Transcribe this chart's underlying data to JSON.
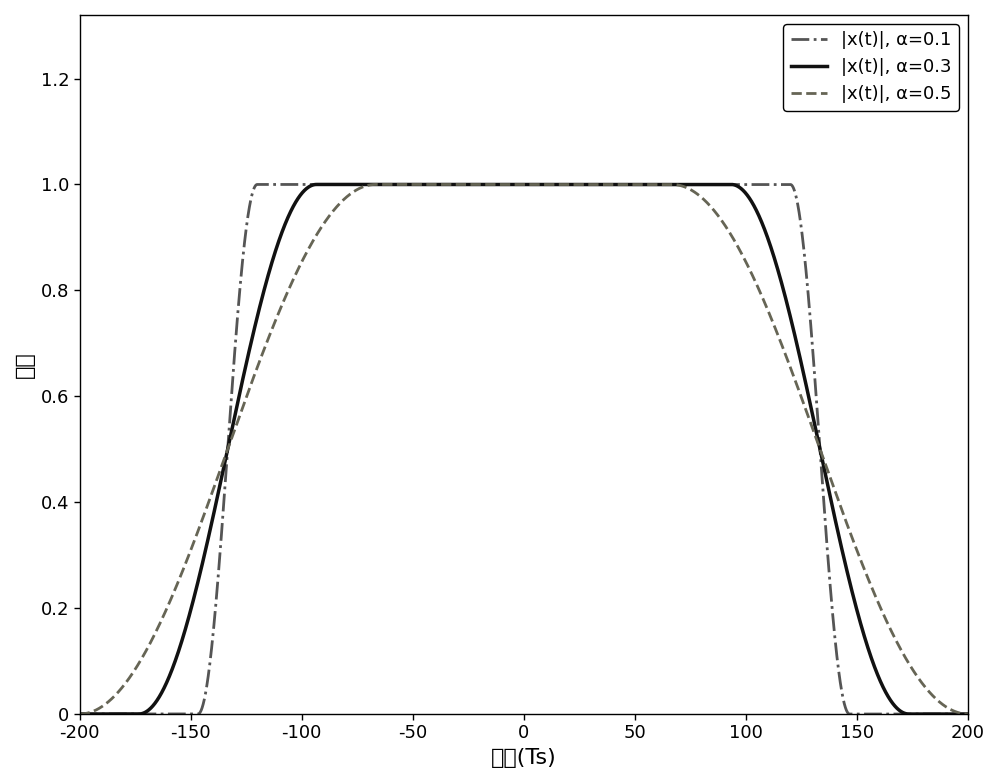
{
  "title": "",
  "xlabel": "时间(Ts)",
  "ylabel": "幅度",
  "xlim": [
    -200,
    200
  ],
  "ylim": [
    0,
    1.32
  ],
  "xticks": [
    -200,
    -150,
    -100,
    -50,
    0,
    50,
    100,
    150,
    200
  ],
  "yticks": [
    0,
    0.2,
    0.4,
    0.6,
    0.8,
    1.0,
    1.2
  ],
  "alphas": [
    0.1,
    0.3,
    0.5
  ],
  "colors": [
    "#555555",
    "#111111",
    "#666555"
  ],
  "linestyles": [
    "dashdot",
    "solid",
    "dashed"
  ],
  "linewidths": [
    2.0,
    2.5,
    2.0
  ],
  "legend_labels": [
    "|x(t)|, α=0.1",
    "|x(t)|, α=0.3",
    "|x(t)|, α=0.5"
  ],
  "T": 1.0,
  "scale": 150,
  "background_color": "#ffffff",
  "grid": false
}
